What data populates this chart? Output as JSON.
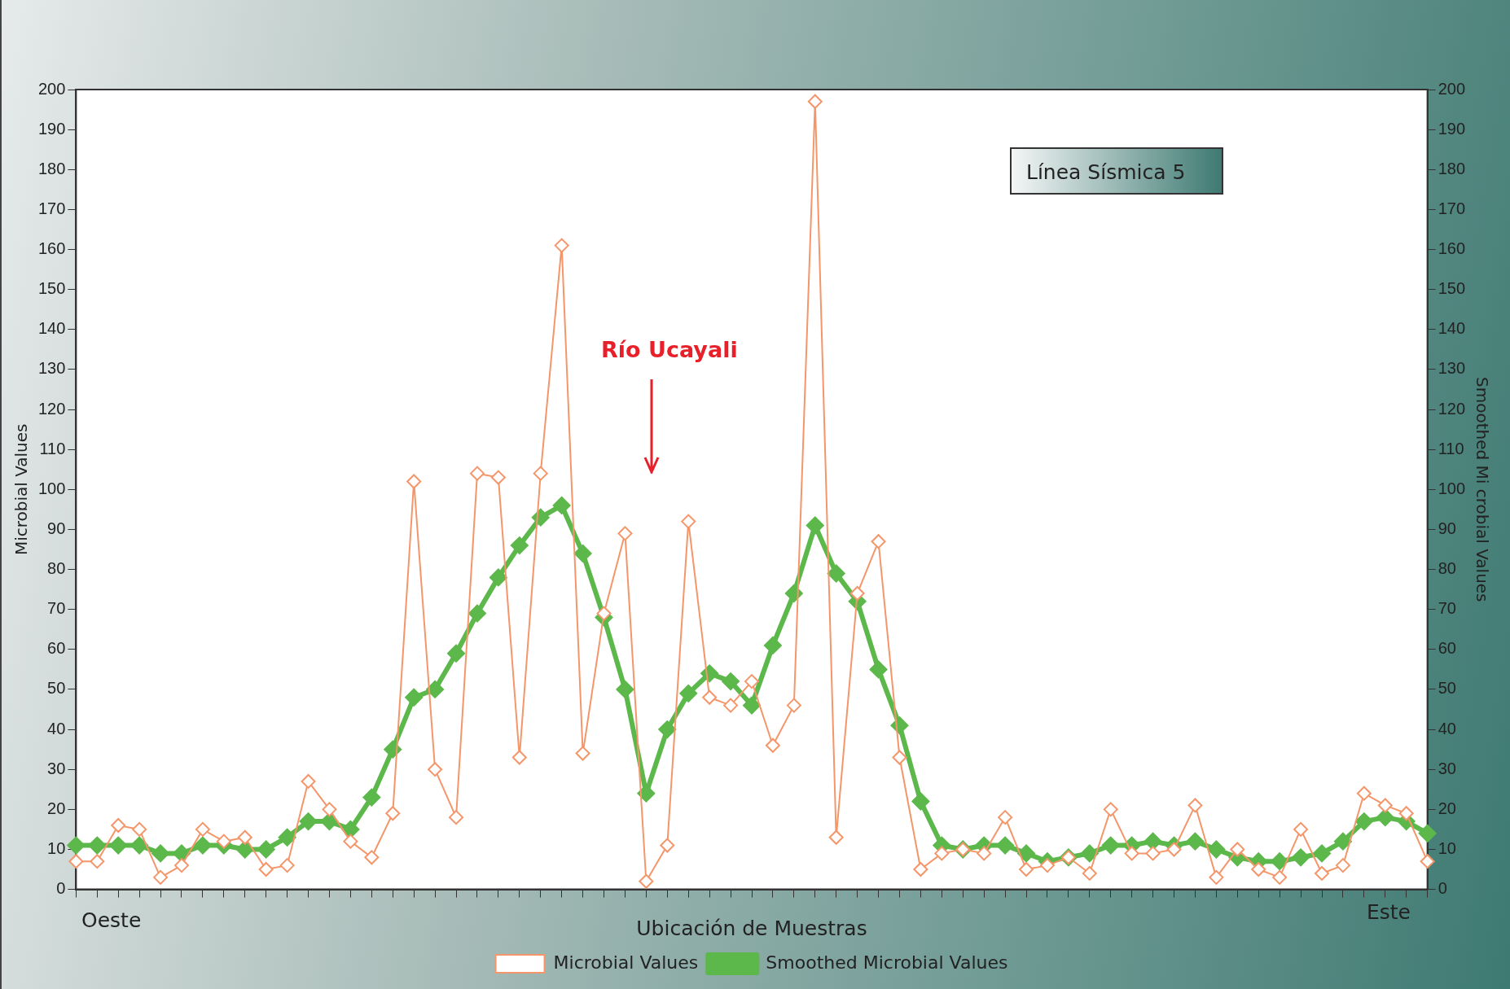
{
  "chart_data": {
    "type": "line",
    "title": "Línea Sísmica 5",
    "xlabel": "Ubicación de Muestras",
    "ylabel": "Microbial Values",
    "y2label": "Smoothed Mi crobial Values",
    "annotations": [
      "Río Ucayali",
      "Oeste",
      "Este"
    ],
    "categories": [
      null,
      null,
      null,
      null,
      null,
      null,
      null,
      null,
      null,
      null,
      null,
      null,
      null,
      null,
      null,
      null,
      null,
      null,
      null,
      null,
      null,
      null,
      null,
      null,
      null,
      null,
      null,
      null,
      null,
      null,
      null,
      null,
      null,
      null,
      null,
      null,
      null,
      null,
      null,
      null,
      null,
      null,
      null,
      null,
      null,
      null,
      null,
      null,
      null,
      null,
      null,
      null,
      null,
      null,
      null,
      null,
      null,
      null,
      null,
      null,
      null,
      null,
      null,
      null,
      null
    ],
    "series": [
      {
        "name": "Microbial Values",
        "color": "#f4966a",
        "values": [
          7,
          7,
          16,
          15,
          3,
          6,
          15,
          12,
          13,
          5,
          6,
          27,
          20,
          12,
          8,
          19,
          102,
          30,
          18,
          104,
          103,
          33,
          104,
          161,
          34,
          69,
          89,
          2,
          11,
          92,
          48,
          46,
          52,
          36,
          46,
          197,
          13,
          74,
          87,
          33,
          5,
          9,
          10,
          9,
          18,
          5,
          6,
          8,
          4,
          20,
          9,
          9,
          10,
          21,
          3,
          10,
          5,
          3,
          15,
          4,
          6,
          24,
          21,
          19,
          7
        ]
      },
      {
        "name": "Smoothed Microbial Values",
        "color": "#5cb84a",
        "values": [
          11,
          11,
          11,
          11,
          9,
          9,
          11,
          11,
          10,
          10,
          13,
          17,
          17,
          15,
          23,
          35,
          48,
          50,
          59,
          69,
          78,
          86,
          93,
          96,
          84,
          68,
          50,
          24,
          40,
          49,
          54,
          52,
          46,
          61,
          74,
          91,
          79,
          72,
          55,
          41,
          22,
          11,
          10,
          11,
          11,
          9,
          7,
          8,
          9,
          11,
          11,
          12,
          11,
          12,
          10,
          8,
          7,
          7,
          8,
          9,
          12,
          17,
          18,
          17,
          14
        ]
      }
    ],
    "ylim": [
      0,
      200
    ],
    "yticks": [
      0,
      10,
      20,
      30,
      40,
      50,
      60,
      70,
      80,
      90,
      100,
      110,
      120,
      130,
      140,
      150,
      160,
      170,
      180,
      190,
      200
    ],
    "y2lim": [
      0,
      200
    ],
    "y2ticks": [
      0,
      10,
      20,
      30,
      40,
      50,
      60,
      70,
      80,
      90,
      100,
      110,
      120,
      130,
      140,
      150,
      160,
      170,
      180,
      190,
      200
    ],
    "grid": false,
    "legend": "bottom",
    "marker": "diamond",
    "line_style": "solid"
  }
}
